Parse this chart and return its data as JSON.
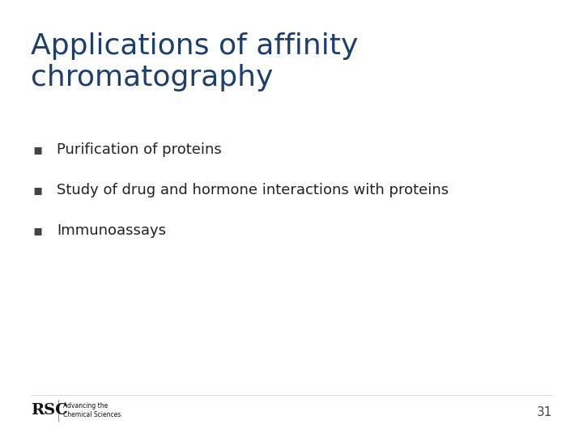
{
  "title_line1": "Applications of affinity",
  "title_line2": "chromatography",
  "title_color": "#1c3f6e",
  "title_fontsize": 26,
  "title_fontweight": "normal",
  "bullet_items": [
    "Purification of proteins",
    "Study of drug and hormone interactions with proteins",
    "Immunoassays"
  ],
  "bullet_color": "#222222",
  "bullet_fontsize": 13,
  "bullet_marker": "▪",
  "bullet_marker_color": "#444444",
  "background_color": "#ffffff",
  "page_number": "31",
  "page_number_color": "#444444",
  "page_number_fontsize": 11,
  "rsc_color": "#111111",
  "footer_line_color": "#dddddd"
}
